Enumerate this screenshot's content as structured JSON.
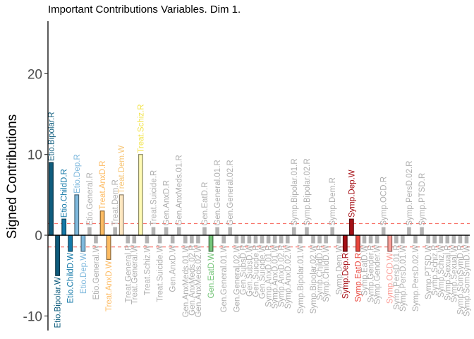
{
  "chart_data": {
    "type": "bar",
    "title": "Important Contributions Variables. Dim 1.",
    "xlabel": "",
    "ylabel": "Signed Contributions",
    "ylim": [
      -11.8,
      26.5
    ],
    "yticks": [
      -10,
      0,
      10,
      20
    ],
    "threshold_lines": [
      1.45,
      -1.45
    ],
    "threshold_color": "#F8766D",
    "grid": false,
    "legend": "none",
    "bars": [
      {
        "label": "Etio.Bipolar.R",
        "value": 9.0,
        "color": "#0E5C7D",
        "important": true
      },
      {
        "label": "Etio.Bipolar.W",
        "value": -5.0,
        "color": "#0E5C7D",
        "important": true
      },
      {
        "label": "Etio.ChildD.R",
        "value": 2.0,
        "color": "#1579A8",
        "important": true
      },
      {
        "label": "Etio.ChildD.W",
        "value": -2.0,
        "color": "#1579A8",
        "important": true
      },
      {
        "label": "Etio.Dep.R",
        "value": 5.0,
        "color": "#7FB9DD",
        "important": true
      },
      {
        "label": "Etio.Dep.W",
        "value": -2.0,
        "color": "#7FB9DD",
        "important": true
      },
      {
        "label": "Etio.General.R",
        "value": 1.0,
        "color": "#BCDCEE",
        "important": false
      },
      {
        "label": "Etio.General.W",
        "value": -1.0,
        "color": "#BCDCEE",
        "important": false
      },
      {
        "label": "Treat.AnxD.R",
        "value": 3.0,
        "color": "#FDBB62",
        "important": true
      },
      {
        "label": "Treat.AnxD.W",
        "value": -3.0,
        "color": "#FDBB62",
        "important": true
      },
      {
        "label": "Treat.Dem.R",
        "value": 1.0,
        "color": "#FEE6C0",
        "important": false
      },
      {
        "label": "Treat.Dem.W",
        "value": 5.0,
        "color": "#FEE6C0",
        "important": true
      },
      {
        "label": "Treat.General.R",
        "value": -1.0,
        "color": "#B3B3B3",
        "important": false
      },
      {
        "label": "Treat.General.W",
        "value": -1.0,
        "color": "#B3B3B3",
        "important": false
      },
      {
        "label": "Treat.Schiz.R",
        "value": 10.0,
        "color": "#FFFAB4",
        "important": true
      },
      {
        "label": "Treat.Schiz.W",
        "value": -1.0,
        "color": "#FFFAB4",
        "important": false
      },
      {
        "label": "Treat.Suicide.R",
        "value": 1.0,
        "color": "#B3B3B3",
        "important": false
      },
      {
        "label": "Treat.Suicide.W",
        "value": -1.0,
        "color": "#B3B3B3",
        "important": false
      },
      {
        "label": "Gen.AnxD.R",
        "value": 1.0,
        "color": "#B3B3B3",
        "important": false
      },
      {
        "label": "Gen.AnxD.W",
        "value": -1.0,
        "color": "#B3B3B3",
        "important": false
      },
      {
        "label": "Gen.AnxMeds.01.R",
        "value": 1.0,
        "color": "#B3B3B3",
        "important": false
      },
      {
        "label": "Gen.AnxMeds.01.W",
        "value": -1.0,
        "color": "#B3B3B3",
        "important": false
      },
      {
        "label": "Gen.AnxMeds.02.R",
        "value": -1.0,
        "color": "#B3B3B3",
        "important": false
      },
      {
        "label": "Gen.AnxMeds.02.W",
        "value": -1.0,
        "color": "#B3B3B3",
        "important": false
      },
      {
        "label": "Gen.EatD.R",
        "value": 1.0,
        "color": "#76C57A",
        "important": false
      },
      {
        "label": "Gen.EatD.W",
        "value": -2.0,
        "color": "#76C57A",
        "important": true
      },
      {
        "label": "Gen.General.01.R",
        "value": 1.0,
        "color": "#B3B3B3",
        "important": false
      },
      {
        "label": "Gen.General.01.W",
        "value": -1.0,
        "color": "#B3B3B3",
        "important": false
      },
      {
        "label": "Gen.General.02.R",
        "value": 1.0,
        "color": "#B3B3B3",
        "important": false
      },
      {
        "label": "Gen.General.02.W",
        "value": -1.0,
        "color": "#B3B3B3",
        "important": false
      },
      {
        "label": "Gen.SubsD.R",
        "value": -1.0,
        "color": "#B3B3B3",
        "important": false
      },
      {
        "label": "Gen.SubsD.W",
        "value": -1.0,
        "color": "#B3B3B3",
        "important": false
      },
      {
        "label": "Gen.Suicide.R",
        "value": -1.0,
        "color": "#B3B3B3",
        "important": false
      },
      {
        "label": "Gen.Suicide.W",
        "value": -1.0,
        "color": "#B3B3B3",
        "important": false
      },
      {
        "label": "Symp.AnxD.01.R",
        "value": -1.0,
        "color": "#B3B3B3",
        "important": false
      },
      {
        "label": "Symp.AnxD.01.W",
        "value": -1.0,
        "color": "#B3B3B3",
        "important": false
      },
      {
        "label": "Symp.AnxD.02.R",
        "value": -1.0,
        "color": "#B3B3B3",
        "important": false
      },
      {
        "label": "Symp.AnxD.02.W",
        "value": -1.0,
        "color": "#B3B3B3",
        "important": false
      },
      {
        "label": "Symp.Bipolar.01.R",
        "value": 1.0,
        "color": "#B3B3B3",
        "important": false
      },
      {
        "label": "Symp.Bipolar.01.W",
        "value": -1.0,
        "color": "#B3B3B3",
        "important": false
      },
      {
        "label": "Symp.Bipolar.02.R",
        "value": 1.0,
        "color": "#B3B3B3",
        "important": false
      },
      {
        "label": "Symp.Bipolar.02.W",
        "value": -1.0,
        "color": "#B3B3B3",
        "important": false
      },
      {
        "label": "Symp.ChildD.R",
        "value": -1.0,
        "color": "#B3B3B3",
        "important": false
      },
      {
        "label": "Symp.ChildD.W",
        "value": -1.0,
        "color": "#B3B3B3",
        "important": false
      },
      {
        "label": "Symp.Dem.R",
        "value": 1.0,
        "color": "#B3B3B3",
        "important": false
      },
      {
        "label": "Symp.Dem.W",
        "value": -1.0,
        "color": "#B3B3B3",
        "important": false
      },
      {
        "label": "Symp.Dep.R",
        "value": -2.0,
        "color": "#A50F15",
        "important": true
      },
      {
        "label": "Symp.Dep.W",
        "value": 2.0,
        "color": "#A50F15",
        "important": true
      },
      {
        "label": "Symp.EatD.R",
        "value": -2.0,
        "color": "#E8453C",
        "important": true
      },
      {
        "label": "Symp.EatD.W",
        "value": -1.0,
        "color": "#B3B3B3",
        "important": false
      },
      {
        "label": "Symp.Gender.R",
        "value": -1.0,
        "color": "#B3B3B3",
        "important": false
      },
      {
        "label": "Symp.Gender.W",
        "value": -1.0,
        "color": "#B3B3B3",
        "important": false
      },
      {
        "label": "Symp.OCD.R",
        "value": 1.0,
        "color": "#FCA09A",
        "important": false
      },
      {
        "label": "Symp.OCD.W",
        "value": -2.0,
        "color": "#FCA09A",
        "important": true
      },
      {
        "label": "Symp.PersD.01.R",
        "value": -1.0,
        "color": "#B3B3B3",
        "important": false
      },
      {
        "label": "Symp.PersD.01.W",
        "value": -1.0,
        "color": "#B3B3B3",
        "important": false
      },
      {
        "label": "Symp.PersD.02.R",
        "value": 1.0,
        "color": "#B3B3B3",
        "important": false
      },
      {
        "label": "Symp.PersD.02.W",
        "value": -1.0,
        "color": "#B3B3B3",
        "important": false
      },
      {
        "label": "Symp.PTSD.R",
        "value": 1.0,
        "color": "#B3B3B3",
        "important": false
      },
      {
        "label": "Symp.PTSD.W",
        "value": -1.0,
        "color": "#B3B3B3",
        "important": false
      },
      {
        "label": "Symp.Schiz.R",
        "value": -1.0,
        "color": "#B3B3B3",
        "important": false
      },
      {
        "label": "Symp.Schiz.W",
        "value": -1.0,
        "color": "#B3B3B3",
        "important": false
      },
      {
        "label": "Symp.Sexual.R",
        "value": -1.0,
        "color": "#B3B3B3",
        "important": false
      },
      {
        "label": "Symp.Sexual.W",
        "value": -1.0,
        "color": "#B3B3B3",
        "important": false
      },
      {
        "label": "Symp.SomSymD.R",
        "value": -1.0,
        "color": "#B3B3B3",
        "important": false
      },
      {
        "label": "Symp.SomSymD.W",
        "value": -1.0,
        "color": "#B3B3B3",
        "important": false
      }
    ]
  }
}
